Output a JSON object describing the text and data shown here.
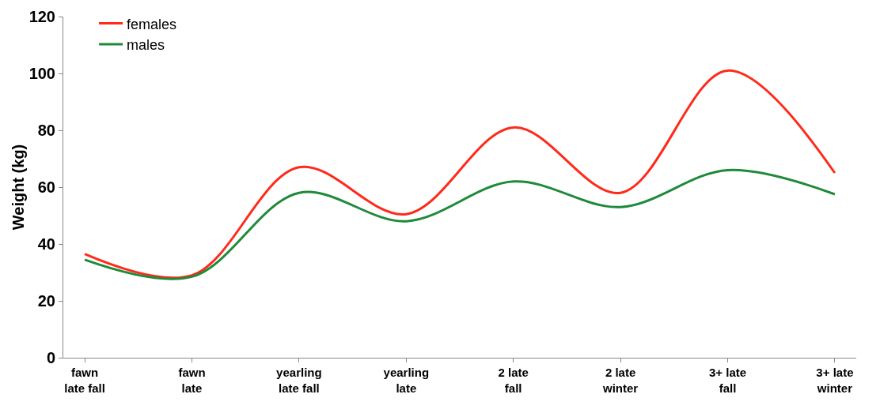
{
  "chart_data": {
    "type": "line",
    "ylabel": "Weight (kg)",
    "categories": [
      "fawn\nlate fall",
      "fawn\nlate",
      "yearling\nlate fall",
      "yearling\nlate",
      "2 late\nfall",
      "2 late\nwinter",
      "3+ late\nfall",
      "3+ late\nwinter"
    ],
    "series": [
      {
        "name": "females",
        "color": "#ff2a1a",
        "values": [
          36.5,
          29,
          67,
          50.5,
          81,
          58,
          101,
          65
        ]
      },
      {
        "name": "males",
        "color": "#1f8a3a",
        "values": [
          34.5,
          28.5,
          58,
          48,
          62,
          53,
          66,
          57.5
        ]
      }
    ],
    "ylim": [
      0,
      120
    ],
    "yticks": [
      0,
      20,
      40,
      60,
      80,
      100,
      120
    ],
    "grid": false,
    "legend": "top left",
    "marker": "none",
    "line_style": "solid"
  }
}
